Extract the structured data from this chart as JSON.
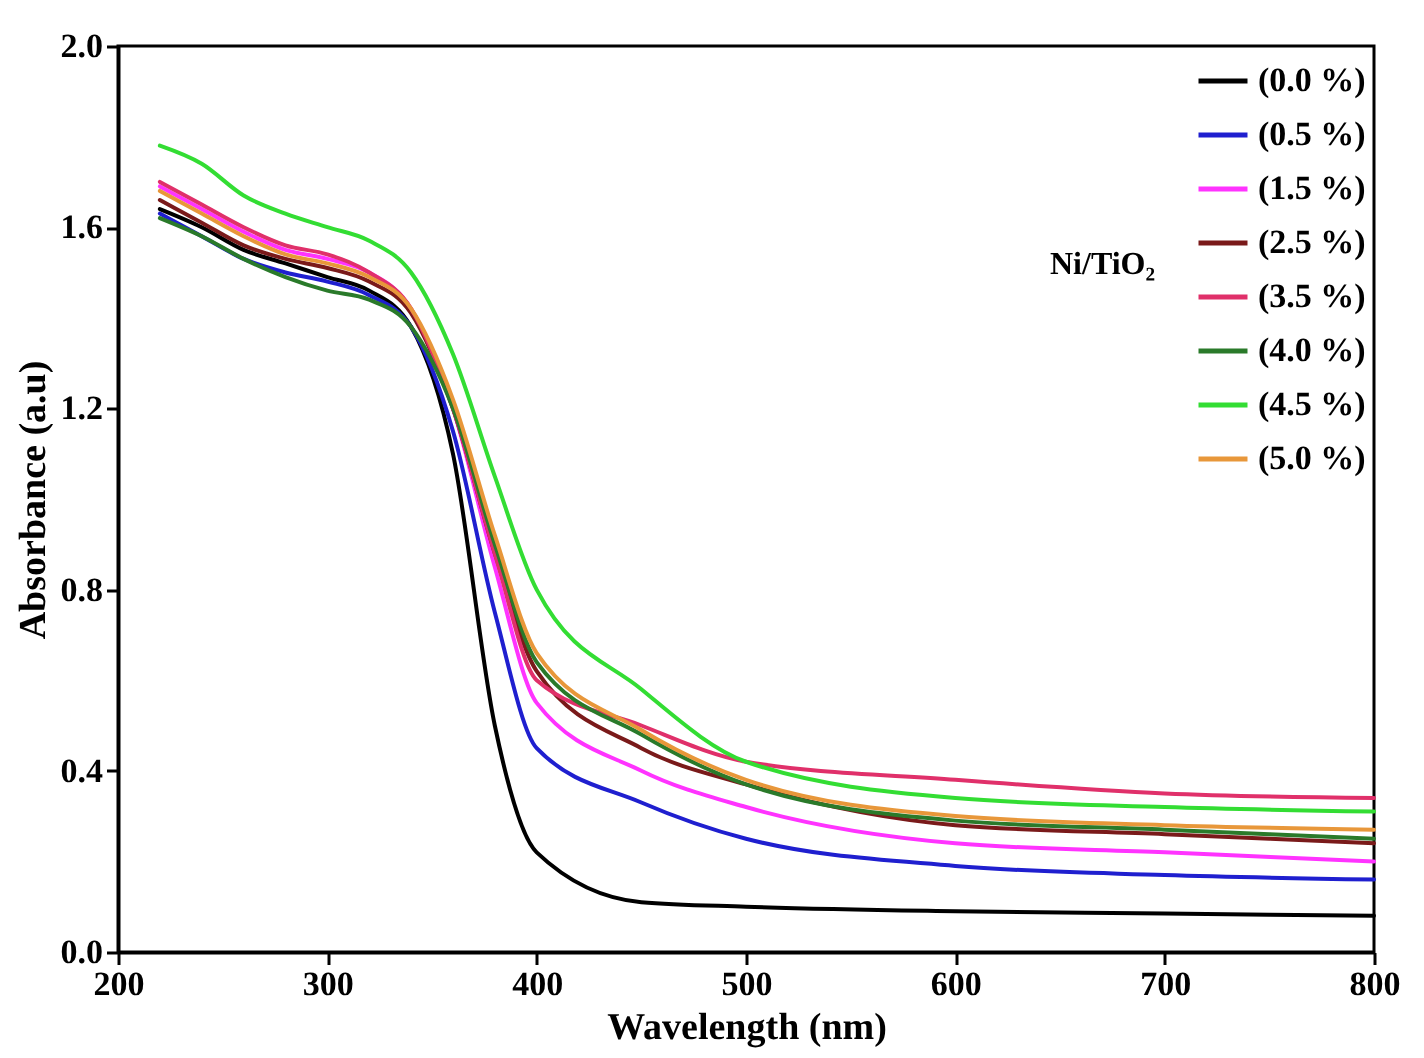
{
  "chart_data": {
    "type": "line",
    "xlabel": "Wavelength (nm)",
    "ylabel": "Absorbance (a.u)",
    "legend_title": "Ni/TiO₂",
    "legend": "top right",
    "grid": false,
    "line_style": "solid",
    "marker": "none",
    "x": [
      220,
      240,
      260,
      280,
      300,
      320,
      340,
      360,
      380,
      400,
      450,
      500,
      600,
      700,
      800
    ],
    "xlim": [
      200,
      800
    ],
    "xticks": [
      200,
      300,
      400,
      500,
      600,
      700,
      800
    ],
    "ylim": [
      0,
      2
    ],
    "yticks": [
      {
        "value": 0,
        "label": "0.0"
      },
      {
        "value": 0.4,
        "label": "0.4"
      },
      {
        "value": 0.8,
        "label": "0.8"
      },
      {
        "value": 1.2,
        "label": "1.2"
      },
      {
        "value": 1.6,
        "label": "1.6"
      },
      {
        "value": 2,
        "label": "2.0"
      }
    ],
    "series": [
      {
        "name": "(0.0 %)",
        "color": "#000000",
        "values": [
          1.64,
          1.6,
          1.55,
          1.52,
          1.49,
          1.46,
          1.38,
          1.1,
          0.5,
          0.22,
          0.11,
          0.1,
          0.09,
          0.085,
          0.08
        ]
      },
      {
        "name": "(0.5 %)",
        "color": "#1f1fcf",
        "values": [
          1.63,
          1.58,
          1.53,
          1.5,
          1.48,
          1.45,
          1.38,
          1.15,
          0.75,
          0.45,
          0.33,
          0.25,
          0.19,
          0.17,
          0.16
        ]
      },
      {
        "name": "(1.5 %)",
        "color": "#ff33ff",
        "values": [
          1.69,
          1.64,
          1.59,
          1.55,
          1.53,
          1.5,
          1.42,
          1.2,
          0.85,
          0.55,
          0.4,
          0.32,
          0.24,
          0.22,
          0.2
        ]
      },
      {
        "name": "(2.5 %)",
        "color": "#7a1a1a",
        "values": [
          1.66,
          1.61,
          1.56,
          1.53,
          1.51,
          1.48,
          1.41,
          1.2,
          0.88,
          0.62,
          0.45,
          0.37,
          0.28,
          0.26,
          0.24
        ]
      },
      {
        "name": "(3.5 %)",
        "color": "#e0306a",
        "values": [
          1.7,
          1.65,
          1.6,
          1.56,
          1.54,
          1.5,
          1.42,
          1.2,
          0.88,
          0.6,
          0.5,
          0.42,
          0.38,
          0.35,
          0.34
        ]
      },
      {
        "name": "(4.0 %)",
        "color": "#2a7a2a",
        "values": [
          1.62,
          1.58,
          1.53,
          1.49,
          1.46,
          1.44,
          1.38,
          1.2,
          0.9,
          0.64,
          0.48,
          0.37,
          0.29,
          0.27,
          0.25
        ]
      },
      {
        "name": "(4.5 %)",
        "color": "#33dd33",
        "values": [
          1.78,
          1.74,
          1.67,
          1.63,
          1.6,
          1.57,
          1.5,
          1.32,
          1.05,
          0.8,
          0.58,
          0.42,
          0.34,
          0.32,
          0.31
        ]
      },
      {
        "name": "(5.0 %)",
        "color": "#e8973a",
        "values": [
          1.68,
          1.63,
          1.58,
          1.54,
          1.52,
          1.49,
          1.42,
          1.22,
          0.92,
          0.66,
          0.49,
          0.38,
          0.3,
          0.28,
          0.27
        ]
      }
    ]
  }
}
